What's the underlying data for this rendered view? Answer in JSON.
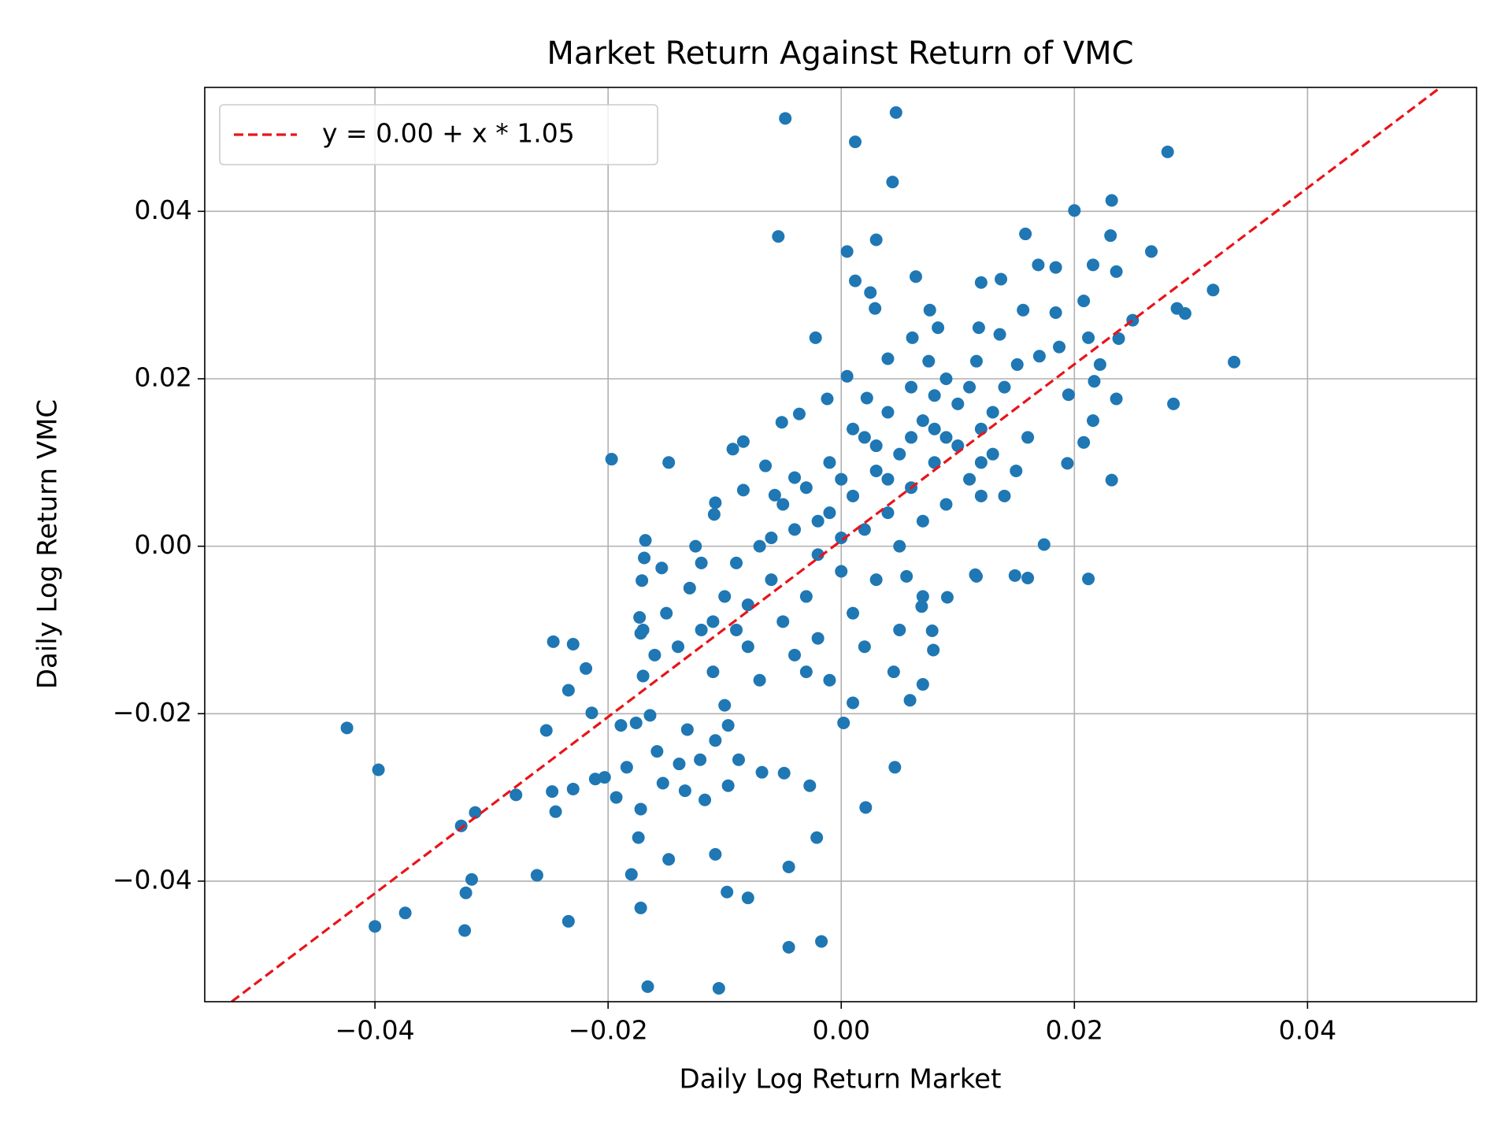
{
  "chart_data": {
    "type": "scatter",
    "title": "Market Return Against Return of VMC",
    "xlabel": "Daily Log Return Market",
    "ylabel": "Daily Log Return VMC",
    "xlim": [
      -0.0546,
      0.0545
    ],
    "ylim": [
      -0.0544,
      0.0548
    ],
    "xticks": [
      {
        "value": -0.04,
        "label": "−0.04"
      },
      {
        "value": -0.02,
        "label": "−0.02"
      },
      {
        "value": 0,
        "label": "0.00"
      },
      {
        "value": 0.02,
        "label": "0.02"
      },
      {
        "value": 0.04,
        "label": "0.04"
      }
    ],
    "yticks": [
      {
        "value": -0.04,
        "label": "−0.04"
      },
      {
        "value": -0.02,
        "label": "−0.02"
      },
      {
        "value": 0,
        "label": "0.00"
      },
      {
        "value": 0.02,
        "label": "0.02"
      },
      {
        "value": 0.04,
        "label": "0.04"
      }
    ],
    "grid": true,
    "legend": "upper left",
    "series": [
      {
        "type": "scatter",
        "color": "#1f77b4",
        "x": [
          -0.0048,
          0.0047,
          0.0012,
          0.0044,
          0.028,
          0.0232,
          0.02,
          -0.0054,
          0.0158,
          0.0231,
          0.003,
          0.0005,
          0.0266,
          0.0169,
          0.0184,
          0.0216,
          0.0236,
          0.0064,
          0.0012,
          0.012,
          0.0137,
          0.0319,
          0.0025,
          0.0208,
          0.0029,
          0.0076,
          0.0156,
          0.0184,
          0.0288,
          0.0295,
          0.025,
          0.0083,
          0.0118,
          -0.0022,
          0.0061,
          0.0136,
          0.0212,
          0.0238,
          0.0187,
          0.017,
          0.0337,
          0.0222,
          0.0151,
          0.004,
          0.0075,
          0.0116,
          0.0005,
          0.0217,
          0.0195,
          0.0236,
          0.0285,
          -0.0012,
          0.0022,
          -0.0036,
          -0.0051,
          0.0216,
          0.0208,
          -0.0084,
          -0.0093,
          -0.0197,
          -0.0148,
          0.0194,
          -0.0065,
          0.0232,
          -0.004,
          -0.0084,
          -0.0108,
          -0.0109,
          -0.0057,
          -0.0168,
          -0.0125,
          0.0174,
          0.0212,
          0.0149,
          0.016,
          0.0116,
          0.0056,
          0.0091,
          0.0069,
          -0.0171,
          -0.0169,
          -0.0154,
          -0.0247,
          -0.023,
          -0.0219,
          -0.0234,
          -0.0173,
          -0.0172,
          -0.017,
          -0.0214,
          -0.0424,
          -0.0397,
          -0.0253,
          -0.0189,
          -0.0176,
          -0.0164,
          -0.0158,
          -0.0184,
          -0.0139,
          -0.0153,
          -0.0121,
          -0.0088,
          -0.0132,
          -0.0097,
          -0.0108,
          -0.0279,
          -0.0248,
          -0.023,
          -0.0245,
          -0.0211,
          -0.0203,
          -0.0193,
          -0.0172,
          -0.0134,
          -0.0117,
          -0.0097,
          -0.0068,
          -0.0049,
          -0.0027,
          0.0046,
          0.0021,
          -0.0314,
          -0.0326,
          -0.0174,
          -0.0021,
          -0.0148,
          -0.0108,
          -0.0045,
          -0.0261,
          -0.018,
          -0.0317,
          -0.0322,
          -0.0172,
          -0.0098,
          -0.008,
          -0.0374,
          -0.0234,
          -0.04,
          -0.0323,
          -0.0017,
          -0.0045,
          -0.0166,
          -0.0105,
          0.0002,
          0.001,
          0.0059,
          0.0045,
          0.007,
          0.0079,
          0.0078,
          0.0115,
          -0.012,
          -0.01,
          -0.008,
          -0.006,
          -0.005,
          -0.004,
          -0.003,
          -0.002,
          -0.001,
          0,
          0.001,
          0.002,
          0.003,
          0.004,
          0.005,
          0.006,
          0.007,
          0.008,
          0.009,
          0.01,
          0.011,
          0.012,
          0.013,
          0.014,
          0.015,
          0.016,
          -0.014,
          -0.015,
          -0.013,
          -0.011,
          -0.009,
          -0.007,
          -0.006,
          -0.004,
          -0.003,
          -0.002,
          -0.001,
          0,
          0.001,
          0.002,
          0.003,
          0.004,
          0.005,
          0.006,
          0.007,
          0.008,
          0.009,
          0.01,
          0.011,
          0.012,
          0.013,
          -0.016,
          -0.017,
          -0.012,
          -0.01,
          -0.008,
          -0.005,
          -0.003,
          0.001,
          0.003,
          0.005,
          0.007,
          0.002,
          -0.001,
          0.004,
          0.006,
          0.008,
          0,
          -0.002,
          0.009,
          0.012,
          0.014,
          -0.009,
          -0.007,
          -0.011
        ],
        "values": [
          0.0511,
          0.0518,
          0.0483,
          0.0435,
          0.0471,
          0.0413,
          0.0401,
          0.037,
          0.0373,
          0.0371,
          0.0366,
          0.0352,
          0.0352,
          0.0336,
          0.0333,
          0.0336,
          0.0328,
          0.0322,
          0.0317,
          0.0315,
          0.0319,
          0.0306,
          0.0303,
          0.0293,
          0.0284,
          0.0282,
          0.0282,
          0.0279,
          0.0284,
          0.0278,
          0.027,
          0.0261,
          0.0261,
          0.0249,
          0.0249,
          0.0253,
          0.0249,
          0.0248,
          0.0238,
          0.0227,
          0.022,
          0.0217,
          0.0217,
          0.0224,
          0.0221,
          0.0221,
          0.0203,
          0.0197,
          0.0181,
          0.0176,
          0.017,
          0.0176,
          0.0177,
          0.0158,
          0.0148,
          0.015,
          0.0124,
          0.0125,
          0.0116,
          0.0104,
          0.01,
          0.0099,
          0.0096,
          0.0079,
          0.0082,
          0.0067,
          0.0052,
          0.0038,
          0.0061,
          0.0007,
          0.0,
          0.0002,
          -0.0039,
          -0.0035,
          -0.0038,
          -0.0036,
          -0.0036,
          -0.0061,
          -0.0072,
          -0.0041,
          -0.0014,
          -0.0026,
          -0.0114,
          -0.0117,
          -0.0146,
          -0.0172,
          -0.0085,
          -0.0104,
          -0.0155,
          -0.0199,
          -0.0217,
          -0.0267,
          -0.022,
          -0.0214,
          -0.0211,
          -0.0202,
          -0.0245,
          -0.0264,
          -0.026,
          -0.0283,
          -0.0255,
          -0.0255,
          -0.0219,
          -0.0214,
          -0.0232,
          -0.0297,
          -0.0293,
          -0.029,
          -0.0317,
          -0.0278,
          -0.0276,
          -0.03,
          -0.0314,
          -0.0292,
          -0.0303,
          -0.0286,
          -0.027,
          -0.0271,
          -0.0286,
          -0.0264,
          -0.0312,
          -0.0318,
          -0.0334,
          -0.0348,
          -0.0348,
          -0.0374,
          -0.0368,
          -0.0383,
          -0.0393,
          -0.0392,
          -0.0398,
          -0.0414,
          -0.0432,
          -0.0413,
          -0.042,
          -0.0438,
          -0.0448,
          -0.0454,
          -0.0459,
          -0.0472,
          -0.0479,
          -0.0526,
          -0.0528,
          -0.0211,
          -0.0187,
          -0.0184,
          -0.015,
          -0.0165,
          -0.0124,
          -0.0101,
          -0.0034,
          -0.01,
          -0.006,
          -0.012,
          -0.004,
          -0.009,
          0.002,
          -0.006,
          -0.001,
          0.004,
          -0.003,
          0.006,
          0.002,
          0.009,
          0.004,
          0.011,
          0.007,
          0.015,
          0.01,
          0.013,
          0.017,
          0.008,
          0.014,
          0.011,
          0.019,
          0.009,
          0.013,
          -0.012,
          -0.008,
          -0.005,
          -0.015,
          -0.002,
          -0.016,
          0.001,
          -0.013,
          0.007,
          -0.011,
          0.01,
          0.001,
          -0.008,
          0.013,
          -0.004,
          0.016,
          0,
          0.019,
          0.003,
          0.018,
          0.005,
          0.012,
          0.019,
          0.006,
          0.016,
          -0.013,
          -0.01,
          -0.002,
          -0.019,
          -0.007,
          0.005,
          -0.015,
          0.014,
          0.012,
          -0.01,
          -0.006,
          -0.012,
          -0.016,
          0.008,
          0.013,
          0.014,
          0.008,
          0.003,
          0.02,
          0.01,
          0.006,
          -0.01,
          0,
          -0.009
        ]
      },
      {
        "type": "line",
        "name": "y = 0.00 + x * 1.05",
        "color": "#e8141a",
        "linestyle": "dashed",
        "x": [
          -0.0523,
          0.0514
        ],
        "values": [
          -0.0544,
          0.0548
        ]
      }
    ]
  }
}
